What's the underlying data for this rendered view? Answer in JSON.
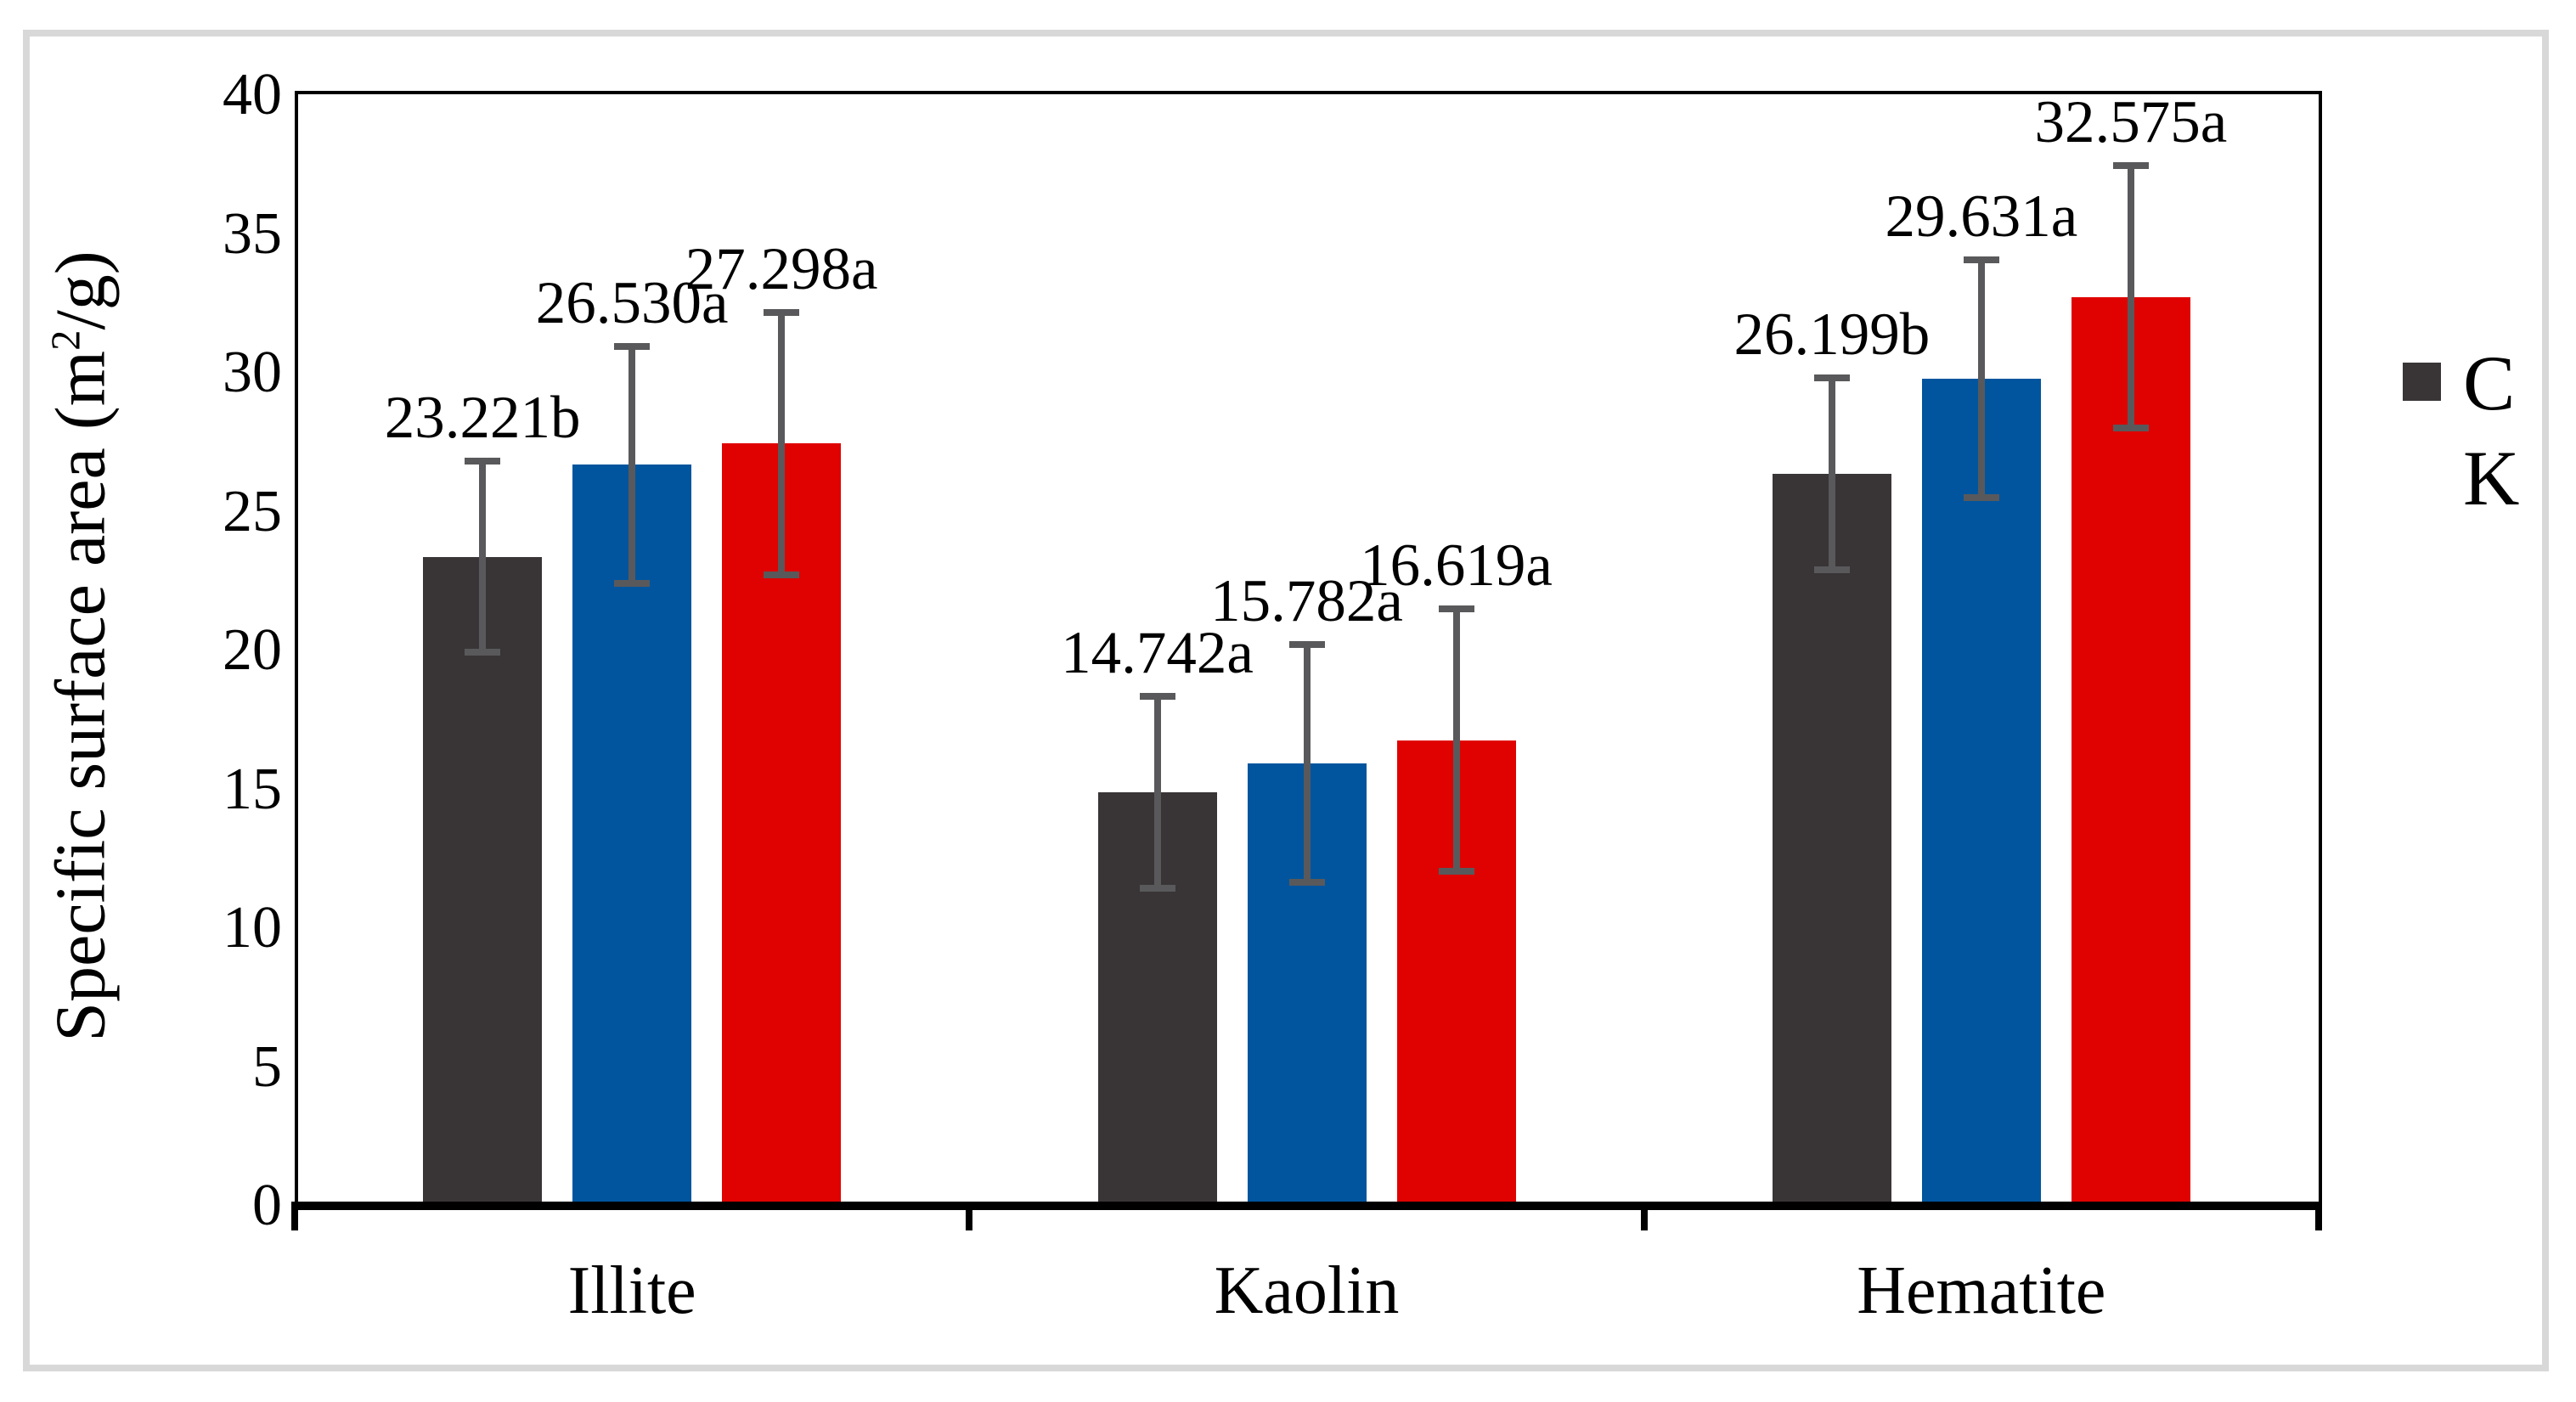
{
  "figure": {
    "background": "#ffffff",
    "border_color": "#D8D8D8"
  },
  "axes": {
    "y_label_prefix": "Specific surface area (m",
    "y_label_sup": "2",
    "y_label_suffix": "/g)",
    "y_ticks": [
      "0",
      "5",
      "10",
      "15",
      "20",
      "25",
      "30",
      "35",
      "40"
    ],
    "y_min": 0,
    "y_max": 40,
    "y_step": 5,
    "x_categories": [
      "Illite",
      "Kaolin",
      "Hematite"
    ]
  },
  "legend": {
    "line1": "C",
    "line2": "K",
    "marker_color": "#393536"
  },
  "chart_data": {
    "type": "bar",
    "title": "",
    "xlabel": "",
    "ylabel": "Specific surface area (m2/g)",
    "ylim": [
      0,
      40
    ],
    "grid": false,
    "legend_position": "right",
    "categories": [
      "Illite",
      "Kaolin",
      "Hematite"
    ],
    "series": [
      {
        "color": "#393536",
        "values": [
          23.221,
          14.742,
          26.199
        ],
        "error": 3.45,
        "labels": [
          "23.221b",
          "14.742a",
          "26.199b"
        ]
      },
      {
        "color": "#00559E",
        "values": [
          26.53,
          15.782,
          29.631
        ],
        "error": 4.27,
        "labels": [
          "26.530a",
          "15.782a",
          "29.631a"
        ]
      },
      {
        "color": "#DF0200",
        "values": [
          27.298,
          16.619,
          32.575
        ],
        "error": 4.72,
        "labels": [
          "27.298a",
          "16.619a",
          "32.575a"
        ]
      }
    ],
    "error_bar_color": "#59595B"
  }
}
